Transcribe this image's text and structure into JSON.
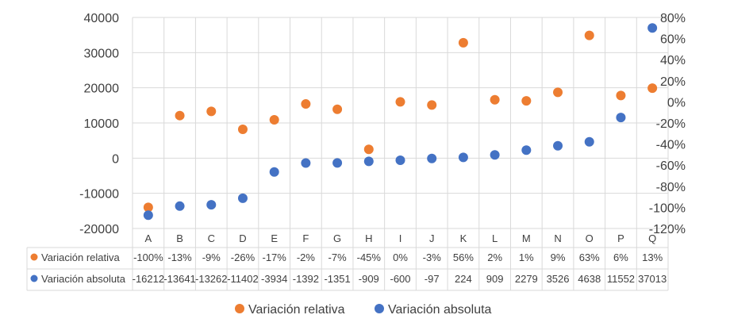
{
  "chart_data": {
    "type": "scatter",
    "categories": [
      "A",
      "B",
      "C",
      "D",
      "E",
      "F",
      "G",
      "H",
      "I",
      "J",
      "K",
      "L",
      "M",
      "N",
      "O",
      "P",
      "Q"
    ],
    "series": [
      {
        "name": "Variación relativa",
        "axis": "secondary",
        "color": "#ED7D31",
        "values": [
          -100,
          -13,
          -9,
          -26,
          -17,
          -2,
          -7,
          -45,
          0,
          -3,
          56,
          2,
          1,
          9,
          63,
          6,
          13
        ],
        "labels": [
          "-100%",
          "-13%",
          "-9%",
          "-26%",
          "-17%",
          "-2%",
          "-7%",
          "-45%",
          "0%",
          "-3%",
          "56%",
          "2%",
          "1%",
          "9%",
          "63%",
          "6%",
          "13%"
        ]
      },
      {
        "name": "Variación absoluta",
        "axis": "primary",
        "color": "#4472C4",
        "values": [
          -16212,
          -13641,
          -13262,
          -11402,
          -3934,
          -1392,
          -1351,
          -909,
          -600,
          -97,
          224,
          909,
          2279,
          3526,
          4638,
          11552,
          37013
        ],
        "labels": [
          "-16212",
          "-13641",
          "-13262",
          "-11402",
          "-3934",
          "-1392",
          "-1351",
          "-909",
          "-600",
          "-97",
          "224",
          "909",
          "2279",
          "3526",
          "4638",
          "11552",
          "37013"
        ]
      }
    ],
    "primary_axis": {
      "ylim": [
        -20000,
        40000
      ],
      "ticks": [
        "40000",
        "30000",
        "20000",
        "10000",
        "0",
        "-10000",
        "-20000"
      ]
    },
    "secondary_axis": {
      "ylim": [
        -120,
        80
      ],
      "ticks": [
        "80%",
        "60%",
        "40%",
        "20%",
        "0%",
        "-20%",
        "-40%",
        "-60%",
        "-80%",
        "-100%",
        "-120%"
      ]
    },
    "grid": true,
    "data_table": true,
    "legend_position": "bottom"
  }
}
